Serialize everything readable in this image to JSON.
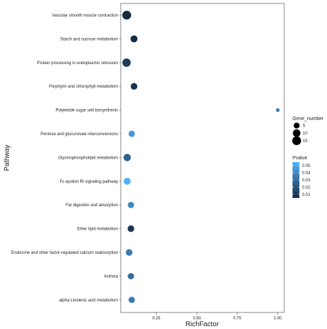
{
  "chart_data": {
    "type": "scatter",
    "xlabel": "RichFactor",
    "ylabel": "Pathway",
    "x_ticks": [
      0.25,
      0.5,
      0.75,
      1.0
    ],
    "x_tick_labels": [
      "0.25",
      "0.50",
      "0.75",
      "1.00"
    ],
    "xlim": [
      0.03,
      1.04
    ],
    "grid": false,
    "legend_position": "right",
    "points": [
      {
        "pathway": "Vascular smooth muscle contraction",
        "rich_factor": 0.067,
        "gene_number": 15,
        "pvalue": 0.005
      },
      {
        "pathway": "Starch and sucrose metabolism",
        "rich_factor": 0.112,
        "gene_number": 8,
        "pvalue": 0.002
      },
      {
        "pathway": "Protein processing in endoplasmic reticulum",
        "rich_factor": 0.066,
        "gene_number": 13,
        "pvalue": 0.012
      },
      {
        "pathway": "Porphyrin and chlorophyll metabolism",
        "rich_factor": 0.112,
        "gene_number": 7,
        "pvalue": 0.008
      },
      {
        "pathway": "Polyketide sugar unit biosynthesis",
        "rich_factor": 1.0,
        "gene_number": 1,
        "pvalue": 0.035
      },
      {
        "pathway": "Pentose and glucuronate interconversions",
        "rich_factor": 0.098,
        "gene_number": 6,
        "pvalue": 0.045
      },
      {
        "pathway": "Glycerophospholipid metabolism",
        "rich_factor": 0.07,
        "gene_number": 9,
        "pvalue": 0.025
      },
      {
        "pathway": "Fc epsilon RI signaling pathway",
        "rich_factor": 0.07,
        "gene_number": 8,
        "pvalue": 0.055
      },
      {
        "pathway": "Fat digestion and absorption",
        "rich_factor": 0.093,
        "gene_number": 6,
        "pvalue": 0.04
      },
      {
        "pathway": "Ether lipid metabolism",
        "rich_factor": 0.093,
        "gene_number": 7,
        "pvalue": 0.01
      },
      {
        "pathway": "Endocrine and other factor-regulated calcium reabsorption",
        "rich_factor": 0.082,
        "gene_number": 7,
        "pvalue": 0.035
      },
      {
        "pathway": "Asthma",
        "rich_factor": 0.093,
        "gene_number": 6,
        "pvalue": 0.03
      },
      {
        "pathway": "alpha-Linolenic acid metabolism",
        "rich_factor": 0.098,
        "gene_number": 6,
        "pvalue": 0.035
      }
    ],
    "size_legend": {
      "title": "Gene_number",
      "values": [
        5,
        10,
        15
      ],
      "labels": [
        "5",
        "10",
        "15"
      ]
    },
    "color_legend": {
      "title": "Pvalue",
      "range": [
        0.005,
        0.055
      ],
      "ticks": [
        0.01,
        0.02,
        0.03,
        0.04,
        0.05
      ],
      "tick_labels": [
        "0.01",
        "0.02",
        "0.03",
        "0.04",
        "0.05"
      ],
      "low_color": "#132B43",
      "high_color": "#56B1F7"
    }
  }
}
